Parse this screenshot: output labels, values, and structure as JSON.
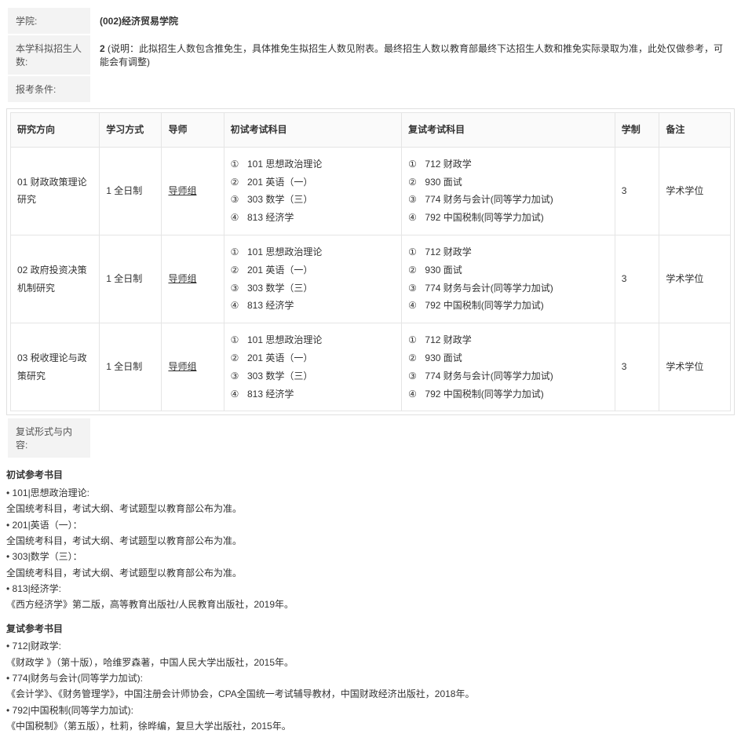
{
  "info": {
    "college_label": "学院:",
    "college_value": "(002)经济贸易学院",
    "quota_label": "本学科拟招生人数:",
    "quota_value_bold": "2",
    "quota_value_rest": " (说明：此拟招生人数包含推免生，具体推免生拟招生人数见附表。最终招生人数以教育部最终下达招生人数和推免实际录取为准，此处仅做参考，可能会有调整)",
    "cond_label": "报考条件:",
    "cond_value": "",
    "retest_form_label": "复试形式与内容:",
    "retest_form_value": ""
  },
  "table": {
    "headers": {
      "direction": "研究方向",
      "mode": "学习方式",
      "tutor": "导师",
      "prelim": "初试考试科目",
      "retest": "复试考试科目",
      "duration": "学制",
      "note": "备注"
    },
    "common": {
      "mode": "1 全日制",
      "tutor": "导师组",
      "duration": "3",
      "note": "学术学位",
      "prelim": [
        " 101  思想政治理论",
        " 201  英语（一）",
        " 303  数学（三）",
        " 813  经济学"
      ],
      "retest": [
        " 712  财政学",
        " 930  面试",
        " 774  财务与会计(同等学力加试)",
        " 792  中国税制(同等学力加试)"
      ]
    },
    "rows": [
      {
        "direction": "01 财政政策理论研究"
      },
      {
        "direction": "02 政府投资决策机制研究"
      },
      {
        "direction": "03 税收理论与政策研究"
      }
    ]
  },
  "prelim_refs": {
    "title": "初试参考书目",
    "items": [
      {
        "head": "101|思想政治理论:",
        "body": "全国统考科目，考试大纲、考试题型以教育部公布为准。"
      },
      {
        "head": "201|英语（一）：",
        "body": "全国统考科目，考试大纲、考试题型以教育部公布为准。"
      },
      {
        "head": "303|数学（三）：",
        "body": "全国统考科目，考试大纲、考试题型以教育部公布为准。"
      },
      {
        "head": "813|经济学:",
        "body": "《西方经济学》第二版，高等教育出版社/人民教育出版社，2019年。"
      }
    ]
  },
  "retest_refs": {
    "title": "复试参考书目",
    "items": [
      {
        "head": "712|财政学:",
        "body": "《财政学 》（第十版），哈维罗森著，中国人民大学出版社，2015年。"
      },
      {
        "head": "774|财务与会计(同等学力加试):",
        "body": "《会计学》、《财务管理学》，中国注册会计师协会，CPA全国统一考试辅导教材，中国财政经济出版社，2018年。"
      },
      {
        "head": "792|中国税制(同等学力加试):",
        "body": "《中国税制》（第五版），杜莉，徐晔编，复旦大学出版社，2015年。"
      }
    ]
  }
}
